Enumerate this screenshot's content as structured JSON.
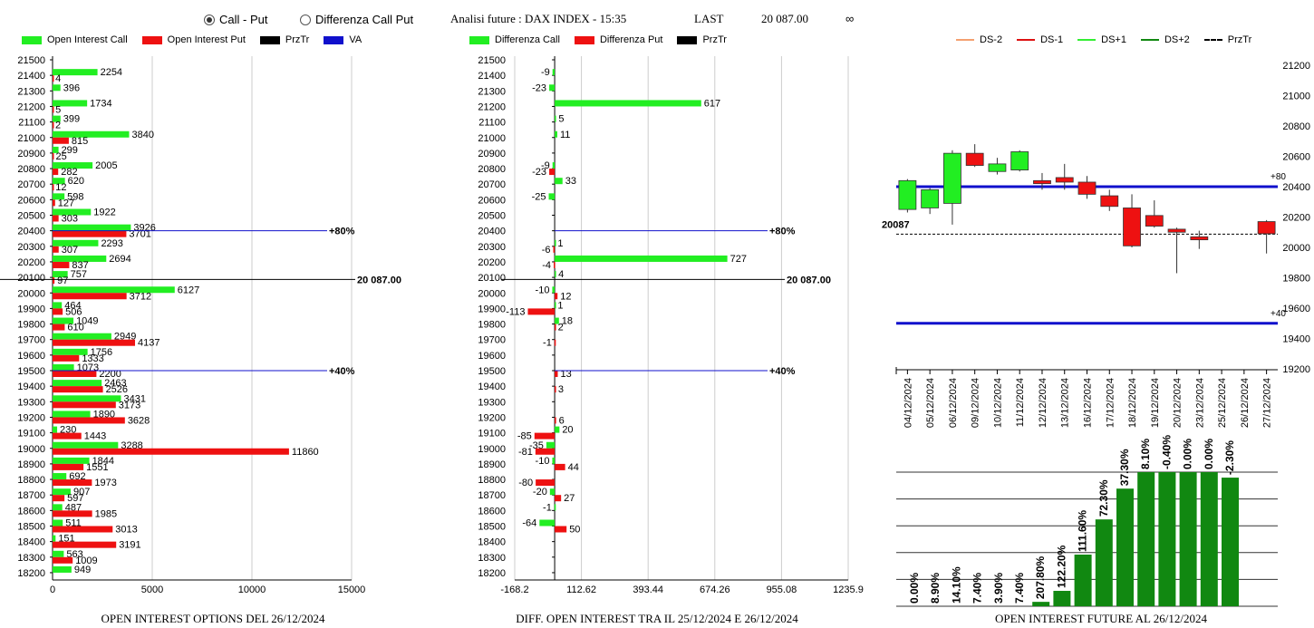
{
  "header": {
    "radio_call_put": "Call - Put",
    "radio_diff": "Differenza Call Put",
    "selected": "call_put",
    "title": "Analisi future : DAX INDEX - 15:35",
    "last_label": "LAST",
    "last_value": "20 087.00",
    "infinity": "∞"
  },
  "legends": {
    "panel1": [
      {
        "label": "Open Interest Call",
        "color": "#22ee22",
        "kind": "box"
      },
      {
        "label": "Open Interest Put",
        "color": "#ee1111",
        "kind": "box"
      },
      {
        "label": "PrzTr",
        "color": "#000000",
        "kind": "box"
      },
      {
        "label": "VA",
        "color": "#1010cc",
        "kind": "box"
      }
    ],
    "panel2": [
      {
        "label": "Differenza Call",
        "color": "#22ee22",
        "kind": "box"
      },
      {
        "label": "Differenza Put",
        "color": "#ee1111",
        "kind": "box"
      },
      {
        "label": "PrzTr",
        "color": "#000000",
        "kind": "box"
      }
    ],
    "panel3": [
      {
        "label": "DS-2",
        "color": "#f4a070",
        "kind": "line"
      },
      {
        "label": "DS-1",
        "color": "#dd1111",
        "kind": "line"
      },
      {
        "label": "DS+1",
        "color": "#33ee33",
        "kind": "line"
      },
      {
        "label": "DS+2",
        "color": "#118811",
        "kind": "line"
      },
      {
        "label": "PrzTr",
        "color": "#000000",
        "kind": "dash"
      }
    ]
  },
  "footers": {
    "panel1": "OPEN INTEREST OPTIONS DEL 26/12/2024",
    "panel2": "DIFF. OPEN INTEREST TRA IL 25/12/2024 E 26/12/2024",
    "panel3": "OPEN INTEREST FUTURE AL 26/12/2024"
  },
  "chart_data": [
    {
      "type": "bar",
      "orientation": "horizontal",
      "title": "OPEN INTEREST OPTIONS DEL 26/12/2024",
      "categories": [
        21500,
        21400,
        21300,
        21200,
        21100,
        21000,
        20900,
        20800,
        20700,
        20600,
        20500,
        20400,
        20300,
        20200,
        20100,
        20000,
        19900,
        19800,
        19700,
        19600,
        19500,
        19400,
        19300,
        19200,
        19100,
        19000,
        18900,
        18800,
        18700,
        18600,
        18500,
        18400,
        18300,
        18200
      ],
      "series": [
        {
          "name": "Open Interest Call",
          "color": "#22ee22",
          "values": [
            null,
            2254,
            396,
            1734,
            399,
            3840,
            299,
            2005,
            620,
            598,
            1922,
            3926,
            2293,
            2694,
            757,
            6127,
            464,
            1049,
            2949,
            1756,
            1073,
            2463,
            3431,
            1890,
            230,
            3288,
            1844,
            692,
            907,
            487,
            511,
            151,
            563,
            949
          ]
        },
        {
          "name": "Open Interest Put",
          "color": "#ee1111",
          "values": [
            null,
            4,
            null,
            5,
            2,
            815,
            25,
            282,
            12,
            127,
            303,
            3701,
            307,
            837,
            97,
            3712,
            506,
            610,
            4137,
            1333,
            2200,
            2526,
            3173,
            3628,
            1443,
            11860,
            1551,
            1973,
            597,
            1985,
            3013,
            3191,
            1009,
            null
          ]
        }
      ],
      "xlim": [
        0,
        15000
      ],
      "xticks": [
        "0",
        "5000",
        "10000",
        "15000"
      ],
      "reference_lines": [
        {
          "level": 20400,
          "label": "+80%",
          "color": "#1010cc"
        },
        {
          "level": 20087,
          "label": "20 087.00",
          "color": "#000000"
        },
        {
          "level": 19500,
          "label": "+40%",
          "color": "#1010cc"
        }
      ]
    },
    {
      "type": "bar",
      "orientation": "horizontal",
      "title": "DIFF. OPEN INTEREST TRA IL 25/12/2024 E 26/12/2024",
      "categories": [
        21500,
        21400,
        21300,
        21200,
        21100,
        21000,
        20900,
        20800,
        20700,
        20600,
        20500,
        20400,
        20300,
        20200,
        20100,
        20000,
        19900,
        19800,
        19700,
        19600,
        19500,
        19400,
        19300,
        19200,
        19100,
        19000,
        18900,
        18800,
        18700,
        18600,
        18500,
        18400,
        18300,
        18200
      ],
      "series": [
        {
          "name": "Differenza Call",
          "color": "#22ee22",
          "values": [
            null,
            -9,
            -23,
            617,
            5,
            11,
            null,
            -9,
            33,
            -25,
            null,
            null,
            1,
            727,
            4,
            -10,
            1,
            18,
            null,
            null,
            null,
            null,
            null,
            null,
            20,
            -35,
            -10,
            null,
            -20,
            -1,
            -64,
            null,
            null,
            null
          ]
        },
        {
          "name": "Differenza Put",
          "color": "#ee1111",
          "values": [
            null,
            null,
            null,
            null,
            null,
            null,
            null,
            -23,
            null,
            null,
            null,
            null,
            -6,
            -4,
            null,
            12,
            -113,
            2,
            -1,
            null,
            13,
            3,
            null,
            6,
            -85,
            -81,
            44,
            -80,
            27,
            null,
            50,
            null,
            null,
            null
          ]
        }
      ],
      "xlim": [
        -168.2,
        1235.9
      ],
      "xticks": [
        "-168.2",
        "112.62",
        "393.44",
        "674.26",
        "955.08",
        "1235.9"
      ],
      "reference_lines": [
        {
          "level": 20400,
          "label": "+80%",
          "color": "#1010cc"
        },
        {
          "level": 20087,
          "label": "20 087.00",
          "color": "#000000"
        },
        {
          "level": 19500,
          "label": "+40%",
          "color": "#1010cc"
        }
      ]
    },
    {
      "type": "candlestick",
      "title": "",
      "dates": [
        "04/12/2024",
        "05/12/2024",
        "06/12/2024",
        "09/12/2024",
        "10/12/2024",
        "11/12/2024",
        "12/12/2024",
        "13/12/2024",
        "16/12/2024",
        "17/12/2024",
        "18/12/2024",
        "19/12/2024",
        "20/12/2024",
        "23/12/2024",
        "25/12/2024",
        "26/12/2024",
        "27/12/2024"
      ],
      "ohlc": [
        {
          "o": 20250,
          "h": 20450,
          "l": 20230,
          "c": 20440,
          "color": "#22ee22"
        },
        {
          "o": 20260,
          "h": 20390,
          "l": 20220,
          "c": 20380,
          "color": "#22ee22"
        },
        {
          "o": 20290,
          "h": 20640,
          "l": 20150,
          "c": 20620,
          "color": "#22ee22"
        },
        {
          "o": 20620,
          "h": 20680,
          "l": 20530,
          "c": 20540,
          "color": "#ee1111"
        },
        {
          "o": 20500,
          "h": 20590,
          "l": 20480,
          "c": 20550,
          "color": "#22ee22"
        },
        {
          "o": 20510,
          "h": 20640,
          "l": 20500,
          "c": 20630,
          "color": "#22ee22"
        },
        {
          "o": 20440,
          "h": 20490,
          "l": 20380,
          "c": 20420,
          "color": "#ee1111"
        },
        {
          "o": 20460,
          "h": 20550,
          "l": 20380,
          "c": 20430,
          "color": "#ee1111"
        },
        {
          "o": 20430,
          "h": 20470,
          "l": 20320,
          "c": 20350,
          "color": "#ee1111"
        },
        {
          "o": 20340,
          "h": 20380,
          "l": 20240,
          "c": 20270,
          "color": "#ee1111"
        },
        {
          "o": 20260,
          "h": 20350,
          "l": 20000,
          "c": 20010,
          "color": "#ee1111"
        },
        {
          "o": 20210,
          "h": 20310,
          "l": 20130,
          "c": 20140,
          "color": "#ee1111"
        },
        {
          "o": 20120,
          "h": 20130,
          "l": 19830,
          "c": 20100,
          "color": "#ee1111"
        },
        {
          "o": 20070,
          "h": 20110,
          "l": 19990,
          "c": 20050,
          "color": "#ee1111"
        },
        null,
        null,
        {
          "o": 20170,
          "h": 20180,
          "l": 19960,
          "c": 20090,
          "color": "#ee1111"
        }
      ],
      "ylim": [
        19200,
        21200
      ],
      "yticks": [
        19200,
        19400,
        19600,
        19800,
        20000,
        20200,
        20400,
        20600,
        20800,
        21000,
        21200
      ],
      "hlines": [
        {
          "level": 20400,
          "label": "+80",
          "color": "#1010cc"
        },
        {
          "level": 19500,
          "label": "+40",
          "color": "#1010cc"
        }
      ],
      "last_price": {
        "level": 20087,
        "label": "20087"
      }
    },
    {
      "type": "bar",
      "title": "OPEN INTEREST FUTURE AL 26/12/2024",
      "color": "#118811",
      "labels": [
        "0.00%",
        "8.90%",
        "14.10%",
        "7.40%",
        "3.90%",
        "7.40%",
        "207.80%",
        "122.20%",
        "111.60%",
        "72.30%",
        "37.30%",
        "8.10%",
        "-0.40%",
        "0.00%",
        "0.00%",
        "-2.30%"
      ],
      "values": [
        0,
        0,
        0,
        0,
        0,
        0,
        4,
        14,
        47,
        79,
        107,
        122,
        122,
        122,
        122,
        117
      ],
      "value_unit": "relative bar level (0-122)",
      "gridlines": 5
    }
  ]
}
